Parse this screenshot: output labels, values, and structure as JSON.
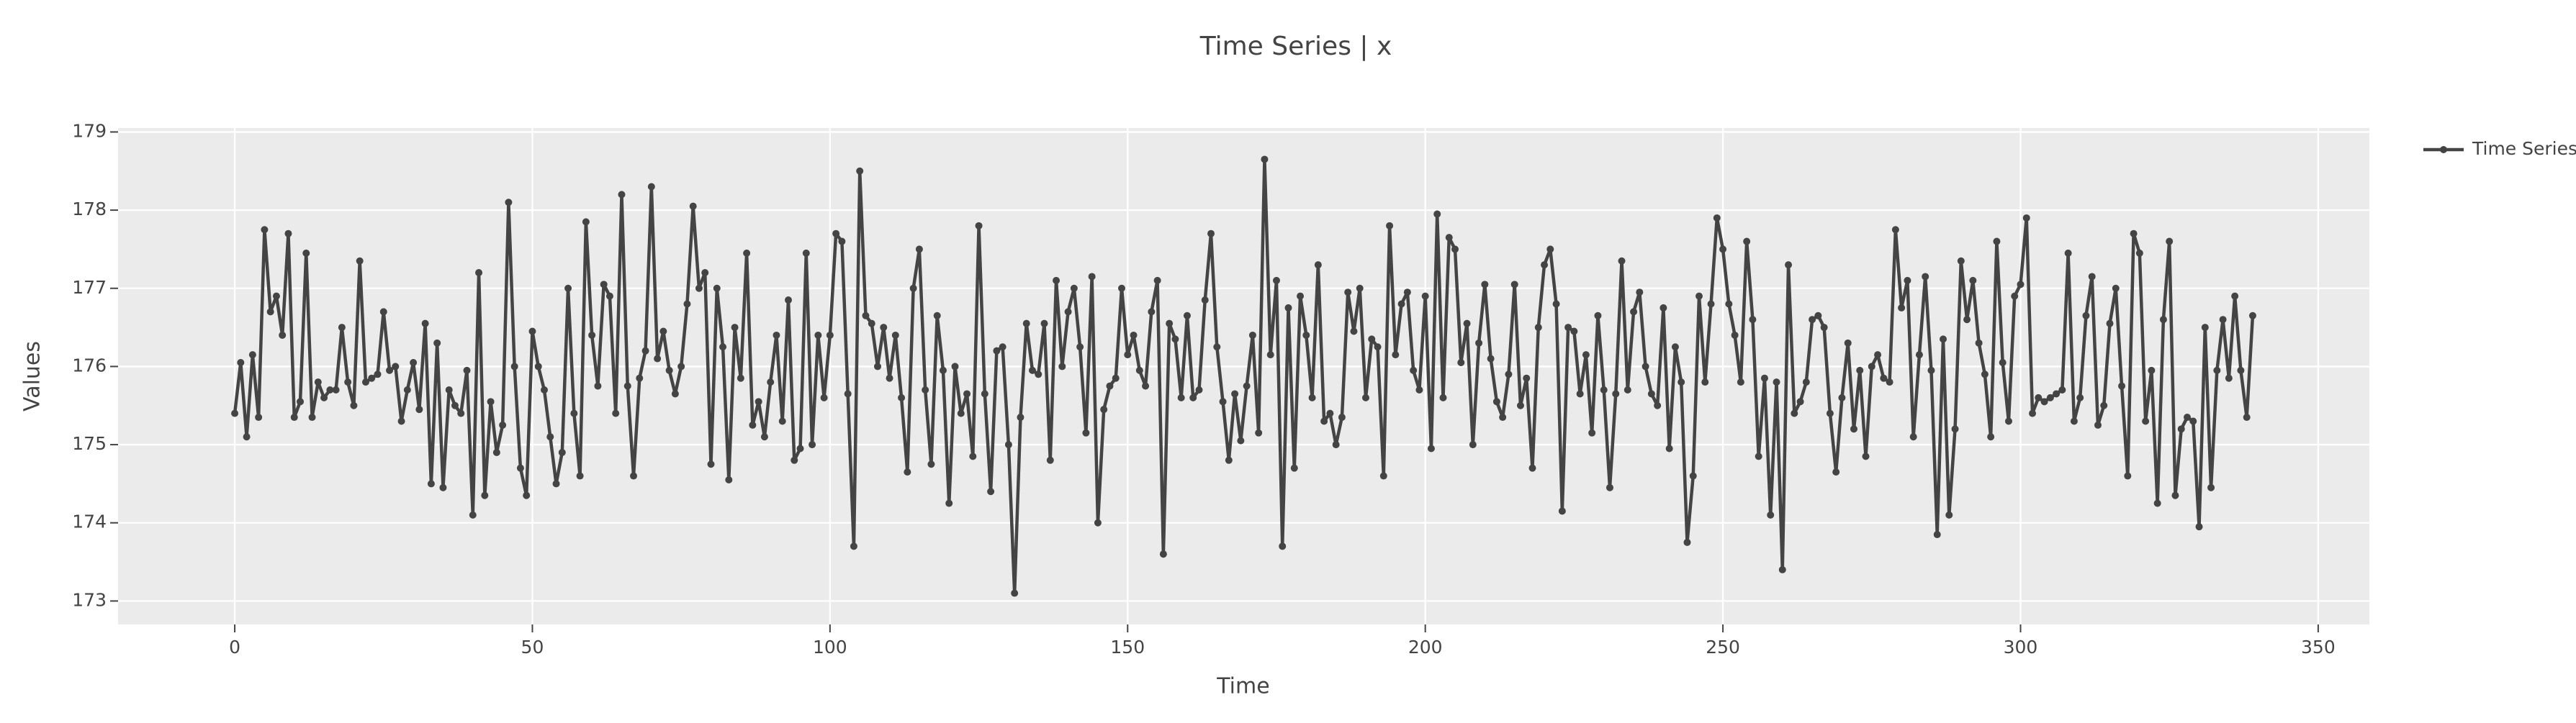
{
  "chart_data": {
    "type": "line",
    "title": "Time Series | x",
    "x_label": "Time",
    "y_label": "Values",
    "x": [
      0,
      1,
      2,
      3,
      4,
      5,
      6,
      7,
      8,
      9,
      10,
      11,
      12,
      13,
      14,
      15,
      16,
      17,
      18,
      19,
      20,
      21,
      22,
      23,
      24,
      25,
      26,
      27,
      28,
      29,
      30,
      31,
      32,
      33,
      34,
      35,
      36,
      37,
      38,
      39,
      40,
      41,
      42,
      43,
      44,
      45,
      46,
      47,
      48,
      49,
      50,
      51,
      52,
      53,
      54,
      55,
      56,
      57,
      58,
      59,
      60,
      61,
      62,
      63,
      64,
      65,
      66,
      67,
      68,
      69,
      70,
      71,
      72,
      73,
      74,
      75,
      76,
      77,
      78,
      79,
      80,
      81,
      82,
      83,
      84,
      85,
      86,
      87,
      88,
      89,
      90,
      91,
      92,
      93,
      94,
      95,
      96,
      97,
      98,
      99,
      100,
      101,
      102,
      103,
      104,
      105,
      106,
      107,
      108,
      109,
      110,
      111,
      112,
      113,
      114,
      115,
      116,
      117,
      118,
      119,
      120,
      121,
      122,
      123,
      124,
      125,
      126,
      127,
      128,
      129,
      130,
      131,
      132,
      133,
      134,
      135,
      136,
      137,
      138,
      139,
      140,
      141,
      142,
      143,
      144,
      145,
      146,
      147,
      148,
      149,
      150,
      151,
      152,
      153,
      154,
      155,
      156,
      157,
      158,
      159,
      160,
      161,
      162,
      163,
      164,
      165,
      166,
      167,
      168,
      169,
      170,
      171,
      172,
      173,
      174,
      175,
      176,
      177,
      178,
      179,
      180,
      181,
      182,
      183,
      184,
      185,
      186,
      187,
      188,
      189,
      190,
      191,
      192,
      193,
      194,
      195,
      196,
      197,
      198,
      199,
      200,
      201,
      202,
      203,
      204,
      205,
      206,
      207,
      208,
      209,
      210,
      211,
      212,
      213,
      214,
      215,
      216,
      217,
      218,
      219,
      220,
      221,
      222,
      223,
      224,
      225,
      226,
      227,
      228,
      229,
      230,
      231,
      232,
      233,
      234,
      235,
      236,
      237,
      238,
      239,
      240,
      241,
      242,
      243,
      244,
      245,
      246,
      247,
      248,
      249,
      250,
      251,
      252,
      253,
      254,
      255,
      256,
      257,
      258,
      259,
      260,
      261,
      262,
      263,
      264,
      265,
      266,
      267,
      268,
      269,
      270,
      271,
      272,
      273,
      274,
      275,
      276,
      277,
      278,
      279,
      280,
      281,
      282,
      283,
      284,
      285,
      286,
      287,
      288,
      289,
      290,
      291,
      292,
      293,
      294,
      295,
      296,
      297,
      298,
      299,
      300,
      301,
      302,
      303,
      304,
      305,
      306,
      307,
      308,
      309,
      310,
      311,
      312,
      313,
      314,
      315,
      316,
      317,
      318,
      319,
      320,
      321,
      322,
      323,
      324,
      325,
      326,
      327,
      328,
      329,
      330,
      331,
      332,
      333,
      334,
      335,
      336,
      337,
      338,
      339
    ],
    "series": [
      {
        "name": "Time Series",
        "color": "#444444",
        "values": [
          175.4,
          176.05,
          175.1,
          176.15,
          175.35,
          177.75,
          176.7,
          176.9,
          176.4,
          177.7,
          175.35,
          175.55,
          177.45,
          175.35,
          175.8,
          175.6,
          175.7,
          175.7,
          176.5,
          175.8,
          175.5,
          177.35,
          175.8,
          175.85,
          175.9,
          176.7,
          175.95,
          176.0,
          175.3,
          175.7,
          176.05,
          175.45,
          176.55,
          174.5,
          176.3,
          174.45,
          175.7,
          175.5,
          175.4,
          175.95,
          174.1,
          177.2,
          174.35,
          175.55,
          174.9,
          175.25,
          178.1,
          176.0,
          174.7,
          174.35,
          176.45,
          176.0,
          175.7,
          175.1,
          174.5,
          174.9,
          177.0,
          175.4,
          174.6,
          177.85,
          176.4,
          175.75,
          177.05,
          176.9,
          175.4,
          178.2,
          175.75,
          174.6,
          175.85,
          176.2,
          178.3,
          176.1,
          176.45,
          175.95,
          175.65,
          176.0,
          176.8,
          178.05,
          177.0,
          177.2,
          174.75,
          177.0,
          176.25,
          174.55,
          176.5,
          175.85,
          177.45,
          175.25,
          175.55,
          175.1,
          175.8,
          176.4,
          175.3,
          176.85,
          174.8,
          174.95,
          177.45,
          175.0,
          176.4,
          175.6,
          176.4,
          177.7,
          177.6,
          175.65,
          173.7,
          178.5,
          176.65,
          176.55,
          176.0,
          176.5,
          175.85,
          176.4,
          175.6,
          174.65,
          177.0,
          177.5,
          175.7,
          174.75,
          176.65,
          175.95,
          174.25,
          176.0,
          175.4,
          175.65,
          174.85,
          177.8,
          175.65,
          174.4,
          176.2,
          176.25,
          175.0,
          173.1,
          175.35,
          176.55,
          175.95,
          175.9,
          176.55,
          174.8,
          177.1,
          176.0,
          176.7,
          177.0,
          176.25,
          175.15,
          177.15,
          174.0,
          175.45,
          175.75,
          175.85,
          177.0,
          176.15,
          176.4,
          175.95,
          175.75,
          176.7,
          177.1,
          173.6,
          176.55,
          176.35,
          175.6,
          176.65,
          175.6,
          175.7,
          176.85,
          177.7,
          176.25,
          175.55,
          174.8,
          175.65,
          175.05,
          175.75,
          176.4,
          175.15,
          178.65,
          176.15,
          177.1,
          173.7,
          176.75,
          174.7,
          176.9,
          176.4,
          175.6,
          177.3,
          175.3,
          175.4,
          175.0,
          175.35,
          176.95,
          176.45,
          177.0,
          175.6,
          176.35,
          176.25,
          174.6,
          177.8,
          176.15,
          176.8,
          176.95,
          175.95,
          175.7,
          176.9,
          174.95,
          177.95,
          175.6,
          177.65,
          177.5,
          176.05,
          176.55,
          175.0,
          176.3,
          177.05,
          176.1,
          175.55,
          175.35,
          175.9,
          177.05,
          175.5,
          175.85,
          174.7,
          176.5,
          177.3,
          177.5,
          176.8,
          174.15,
          176.5,
          176.45,
          175.65,
          176.15,
          175.15,
          176.65,
          175.7,
          174.45,
          175.65,
          177.35,
          175.7,
          176.7,
          176.95,
          176.0,
          175.65,
          175.5,
          176.75,
          174.95,
          176.25,
          175.8,
          173.75,
          174.6,
          176.9,
          175.8,
          176.8,
          177.9,
          177.5,
          176.8,
          176.4,
          175.8,
          177.6,
          176.6,
          174.85,
          175.85,
          174.1,
          175.8,
          173.4,
          177.3,
          175.4,
          175.55,
          175.8,
          176.6,
          176.65,
          176.5,
          175.4,
          174.65,
          175.6,
          176.3,
          175.2,
          175.95,
          174.85,
          176.0,
          176.15,
          175.85,
          175.8,
          177.75,
          176.75,
          177.1,
          175.1,
          176.15,
          177.15,
          175.95,
          173.85,
          176.35,
          174.1,
          175.2,
          177.35,
          176.6,
          177.1,
          176.3,
          175.9,
          175.1,
          177.6,
          176.05,
          175.3,
          176.9,
          177.05,
          177.9,
          175.4,
          175.6,
          175.55,
          175.6,
          175.65,
          175.7,
          177.45,
          175.3,
          175.6,
          176.65,
          177.15,
          175.25,
          175.5,
          176.55,
          177.0,
          175.75,
          174.6,
          177.7,
          177.45,
          175.3,
          175.95,
          174.25,
          176.6,
          177.6,
          174.35,
          175.2,
          175.35,
          175.3,
          173.95,
          176.5,
          174.45,
          175.95,
          176.6,
          175.85,
          176.9,
          175.95,
          175.35,
          176.65
        ]
      }
    ],
    "xlim": [
      -19.6,
      358.6
    ],
    "xticks": [
      0,
      50,
      100,
      150,
      200,
      250,
      300,
      350
    ],
    "ylim": [
      172.7,
      179.05
    ],
    "yticks": [
      173,
      174,
      175,
      176,
      177,
      178,
      179
    ],
    "grid": true,
    "legend": "right",
    "background": "#ebebeb"
  }
}
